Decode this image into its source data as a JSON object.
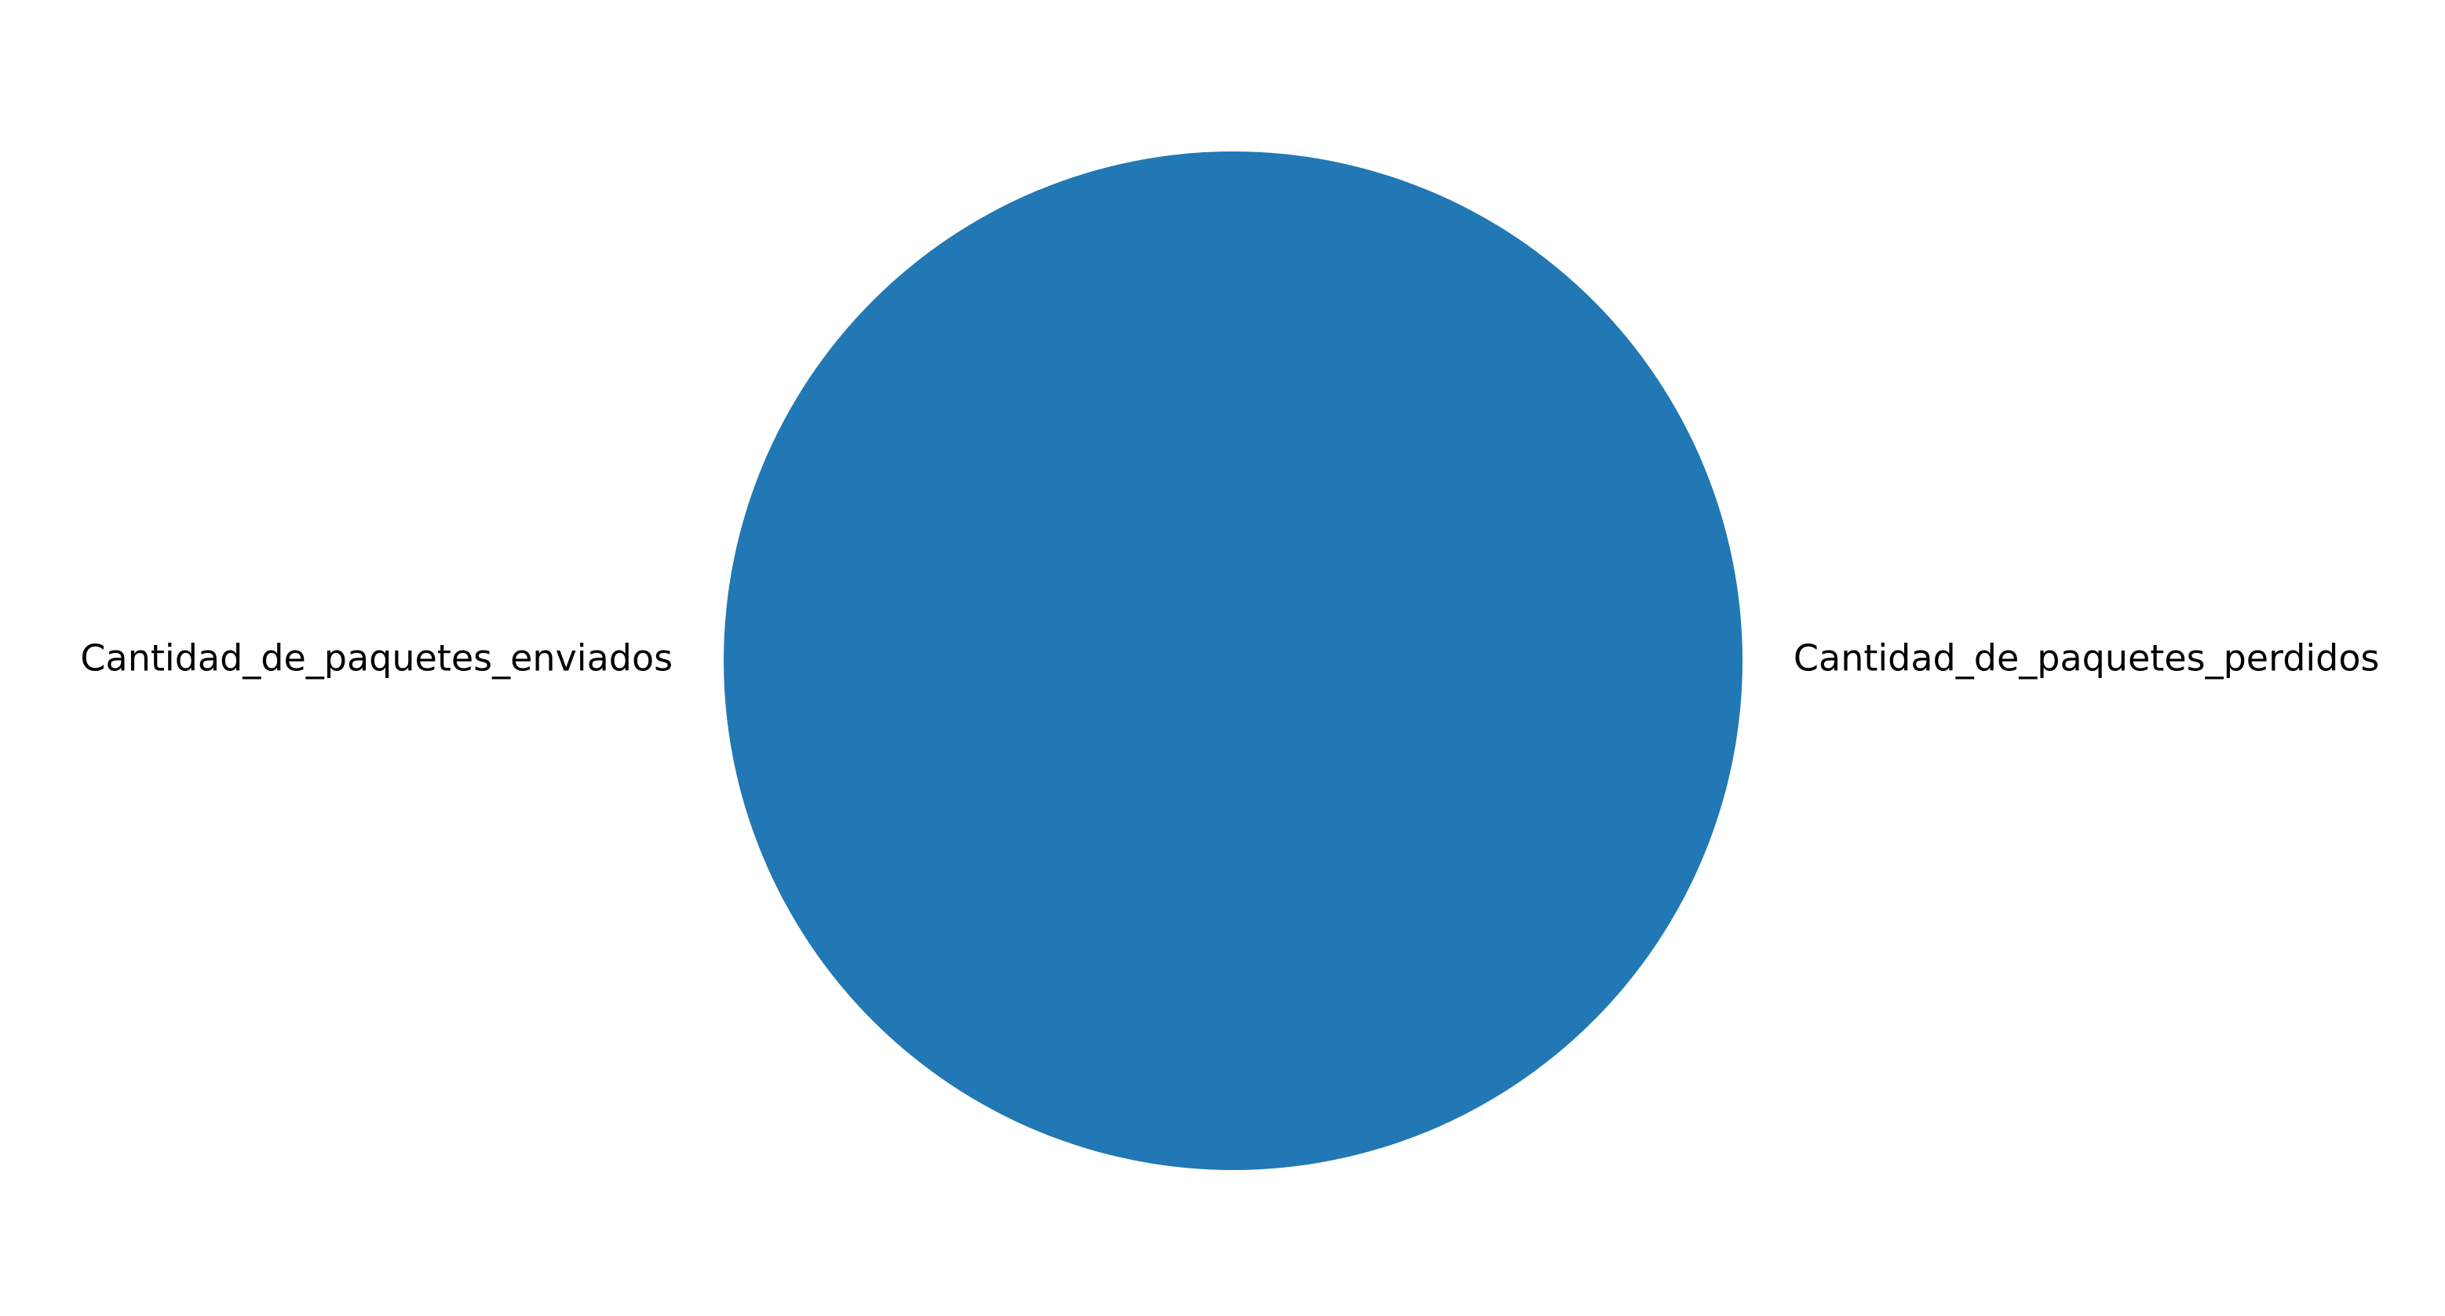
{
  "chart_data": {
    "type": "pie",
    "title": "",
    "slices": [
      {
        "label": "Cantidad_de_paquetes_enviados",
        "value": 100
      },
      {
        "label": "Cantidad_de_paquetes_perdidos",
        "value": 0
      }
    ],
    "colors": [
      "#2178b4",
      "#ff7f0e"
    ],
    "start_angle_deg": 0,
    "direction": "counterclockwise",
    "legend": "none"
  }
}
